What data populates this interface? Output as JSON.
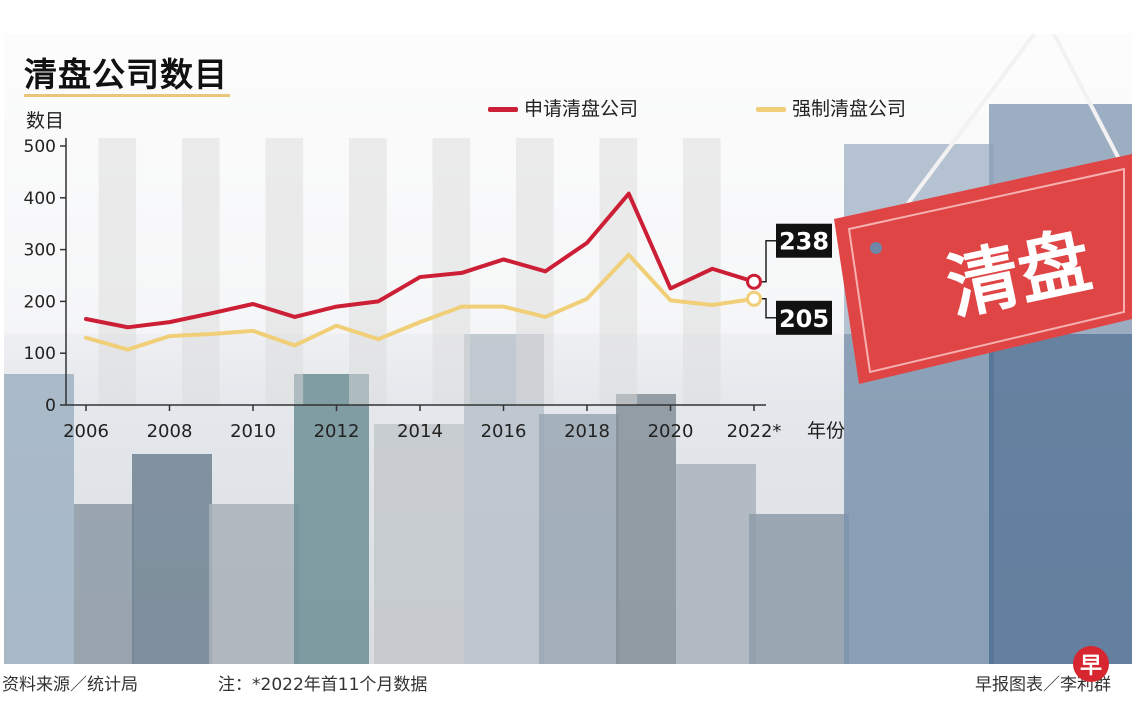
{
  "chart_data": {
    "type": "line",
    "title": "清盘公司数目",
    "ylabel": "数目",
    "xlabel": "年份",
    "ylim": [
      0,
      500
    ],
    "yticks": [
      0,
      100,
      200,
      300,
      400,
      500
    ],
    "xlim": [
      2006,
      2022
    ],
    "xticks": [
      "2006",
      "2008",
      "2010",
      "2012",
      "2014",
      "2016",
      "2018",
      "2020",
      "2022*"
    ],
    "x": [
      2006,
      2007,
      2008,
      2009,
      2010,
      2011,
      2012,
      2013,
      2014,
      2015,
      2016,
      2017,
      2018,
      2019,
      2020,
      2021,
      2022
    ],
    "series": [
      {
        "name": "申请清盘公司",
        "color": "#cc1f36",
        "values": [
          166,
          150,
          160,
          177,
          195,
          170,
          190,
          200,
          247,
          255,
          281,
          258,
          313,
          408,
          225,
          263,
          238
        ],
        "end_label": "238"
      },
      {
        "name": "强制清盘公司",
        "color": "#f0cf78",
        "values": [
          130,
          107,
          133,
          137,
          143,
          115,
          153,
          127,
          160,
          190,
          190,
          170,
          205,
          290,
          202,
          193,
          205
        ],
        "end_label": "205"
      }
    ],
    "legend": "top-right",
    "grid": "alternating vertical bands",
    "background": "city skyline photo"
  },
  "sign": {
    "text": "清盘",
    "color": "#e04545"
  },
  "footer": {
    "source": "资料来源／统计局",
    "note": "注：*2022年首11个月数据",
    "credit": "早报图表／李利群",
    "logo": "早"
  }
}
